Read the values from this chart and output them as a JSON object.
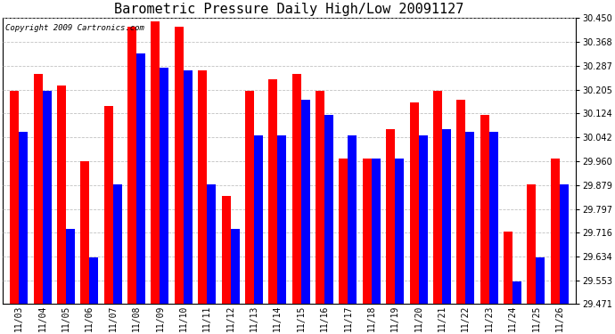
{
  "title": "Barometric Pressure Daily High/Low 20091127",
  "copyright": "Copyright 2009 Cartronics.com",
  "dates": [
    "11/03",
    "11/04",
    "11/05",
    "11/06",
    "11/07",
    "11/08",
    "11/09",
    "11/10",
    "11/11",
    "11/12",
    "11/13",
    "11/14",
    "11/15",
    "11/16",
    "11/17",
    "11/18",
    "11/19",
    "11/20",
    "11/21",
    "11/22",
    "11/23",
    "11/24",
    "11/25",
    "11/26"
  ],
  "highs": [
    30.2,
    30.26,
    30.22,
    29.96,
    30.15,
    30.42,
    30.44,
    30.42,
    30.27,
    29.84,
    30.2,
    30.24,
    30.26,
    30.2,
    29.97,
    29.97,
    30.07,
    30.16,
    30.2,
    30.17,
    30.12,
    29.72,
    29.88,
    29.97
  ],
  "lows": [
    30.06,
    30.2,
    29.73,
    29.63,
    29.88,
    30.33,
    30.28,
    30.27,
    29.88,
    29.73,
    30.05,
    30.05,
    30.17,
    30.12,
    30.05,
    29.97,
    29.97,
    30.05,
    30.07,
    30.06,
    30.06,
    29.55,
    29.63,
    29.88
  ],
  "high_color": "#ff0000",
  "low_color": "#0000ff",
  "bg_color": "#ffffff",
  "plot_bg_color": "#ffffff",
  "grid_color": "#bbbbbb",
  "ylim_min": 29.471,
  "ylim_max": 30.45,
  "yticks": [
    30.45,
    30.368,
    30.287,
    30.205,
    30.124,
    30.042,
    29.96,
    29.879,
    29.797,
    29.716,
    29.634,
    29.553,
    29.471
  ],
  "bar_width": 0.38,
  "title_fontsize": 11,
  "tick_fontsize": 7,
  "copyright_fontsize": 6.5,
  "figwidth": 6.9,
  "figheight": 3.75,
  "dpi": 100
}
